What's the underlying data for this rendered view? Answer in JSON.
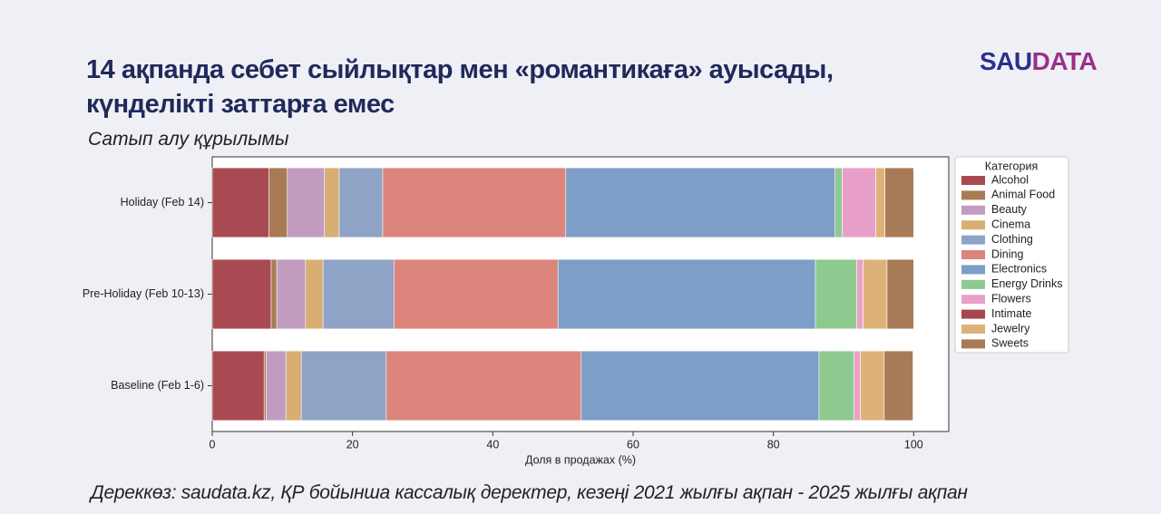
{
  "logo": {
    "part1": "SAU",
    "part2": "DATA"
  },
  "chart_data": {
    "type": "stacked-bar-horizontal",
    "title": "14 ақпанда себет сыйлықтар мен «романтикаға» ауысады, күнделікті заттарға емес",
    "subtitle": "Сатып алу құрылымы",
    "source": "Дереккөз: saudata.kz, ҚР бойынша кассалық деректер, кезеңі 2021 жылғы ақпан - 2025 жылғы ақпан",
    "xlabel": "Доля в продажах (%)",
    "legend_title": "Категория",
    "legend_position": "outside-right",
    "categories": [
      "Holiday (Feb 14)",
      "Pre-Holiday (Feb 10-13)",
      "Baseline (Feb 1-6)"
    ],
    "series": [
      {
        "name": "Alcohol",
        "color": "#a94a52",
        "values": [
          8.1,
          8.4,
          7.4
        ]
      },
      {
        "name": "Animal Food",
        "color": "#a87b55",
        "values": [
          2.6,
          0.8,
          0.3
        ]
      },
      {
        "name": "Beauty",
        "color": "#c29bc1",
        "values": [
          5.3,
          4.1,
          2.8
        ]
      },
      {
        "name": "Cinema",
        "color": "#d9ae73",
        "values": [
          2.1,
          2.5,
          2.2
        ]
      },
      {
        "name": "Clothing",
        "color": "#8ea3c6",
        "values": [
          6.2,
          10.1,
          12.1
        ]
      },
      {
        "name": "Dining",
        "color": "#dc857d",
        "values": [
          26.1,
          23.4,
          27.8
        ]
      },
      {
        "name": "Electronics",
        "color": "#7d9ec6",
        "values": [
          38.4,
          36.7,
          33.9
        ]
      },
      {
        "name": "Energy Drinks",
        "color": "#8ec98f",
        "values": [
          1.0,
          5.9,
          5.0
        ]
      },
      {
        "name": "Flowers",
        "color": "#e9a0c8",
        "values": [
          4.8,
          0.9,
          0.9
        ]
      },
      {
        "name": "Intimate",
        "color": "#a9454f",
        "values": [
          0,
          0,
          0
        ]
      },
      {
        "name": "Jewelry",
        "color": "#ddb278",
        "values": [
          1.3,
          3.4,
          3.4
        ]
      },
      {
        "name": "Sweets",
        "color": "#a87b58",
        "values": [
          4.1,
          3.8,
          4.1
        ]
      }
    ],
    "xlim": [
      0,
      105
    ],
    "xticks": [
      0,
      20,
      40,
      60,
      80,
      100
    ],
    "grid": false
  }
}
